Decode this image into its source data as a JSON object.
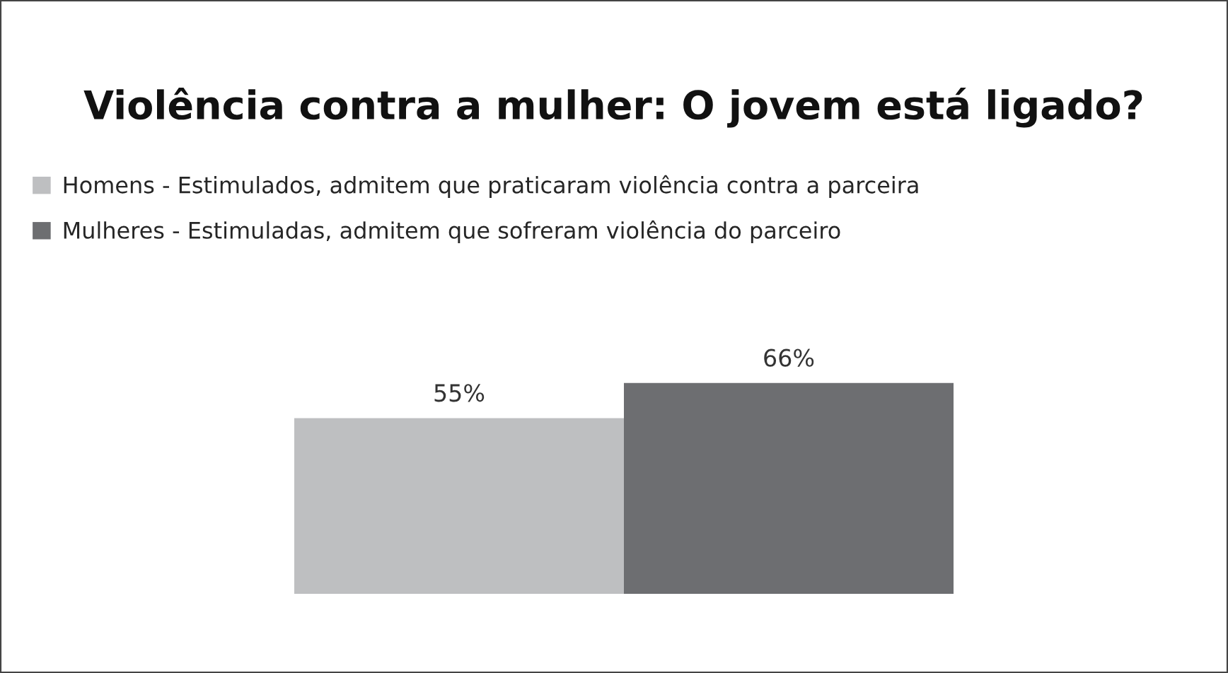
{
  "chart_data": {
    "type": "bar",
    "title": "Violência contra a mulher: O jovem está ligado?",
    "categories": [
      null
    ],
    "series": [
      {
        "name": "Homens - Estimulados, admitem que praticaram violência contra a parceira",
        "color": "#bebfc1",
        "values": [
          55
        ],
        "value_labels": [
          "55%"
        ]
      },
      {
        "name": "Mulheres - Estimuladas, admitem que sofreram violência do parceiro",
        "color": "#6d6e71",
        "values": [
          66
        ],
        "value_labels": [
          "66%"
        ]
      }
    ],
    "legend": "top left"
  }
}
